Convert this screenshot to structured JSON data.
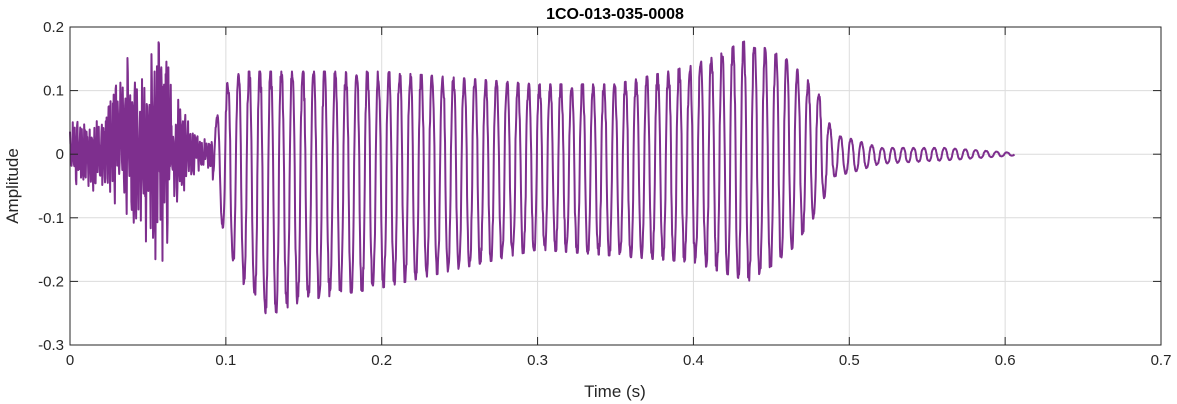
{
  "chart_data": {
    "type": "line",
    "title": "1CO-013-035-0008",
    "xlabel": "Time (s)",
    "ylabel": "Amplitude",
    "xlim": [
      0,
      0.7
    ],
    "ylim": [
      -0.3,
      0.2
    ],
    "grid": true,
    "x_ticks": [
      0,
      0.1,
      0.2,
      0.3,
      0.4,
      0.5,
      0.6,
      0.7
    ],
    "x_tick_labels": [
      "0",
      "0.1",
      "0.2",
      "0.3",
      "0.4",
      "0.5",
      "0.6",
      "0.7"
    ],
    "y_ticks": [
      0.2,
      0.1,
      0,
      -0.1,
      -0.2,
      -0.3
    ],
    "y_tick_labels": [
      "0.2",
      "0.1",
      "0",
      "-0.1",
      "-0.2",
      "-0.3"
    ],
    "series": [
      {
        "color": "#7E2F8E",
        "x_start": 0,
        "x_end": 0.606,
        "envelope": [
          {
            "x": 0.0,
            "max": 0.05,
            "min": -0.05
          },
          {
            "x": 0.02,
            "max": 0.06,
            "min": -0.06
          },
          {
            "x": 0.035,
            "max": 0.16,
            "min": -0.09
          },
          {
            "x": 0.045,
            "max": 0.12,
            "min": -0.12
          },
          {
            "x": 0.058,
            "max": 0.195,
            "min": -0.18
          },
          {
            "x": 0.07,
            "max": 0.09,
            "min": -0.07
          },
          {
            "x": 0.08,
            "max": 0.03,
            "min": -0.03
          },
          {
            "x": 0.09,
            "max": 0.02,
            "min": -0.02
          },
          {
            "x": 0.1,
            "max": 0.11,
            "min": -0.14
          },
          {
            "x": 0.11,
            "max": 0.13,
            "min": -0.2
          },
          {
            "x": 0.127,
            "max": 0.13,
            "min": -0.255
          },
          {
            "x": 0.15,
            "max": 0.13,
            "min": -0.23
          },
          {
            "x": 0.2,
            "max": 0.13,
            "min": -0.21
          },
          {
            "x": 0.25,
            "max": 0.12,
            "min": -0.18
          },
          {
            "x": 0.3,
            "max": 0.11,
            "min": -0.15
          },
          {
            "x": 0.35,
            "max": 0.11,
            "min": -0.16
          },
          {
            "x": 0.4,
            "max": 0.14,
            "min": -0.17
          },
          {
            "x": 0.435,
            "max": 0.18,
            "min": -0.2
          },
          {
            "x": 0.46,
            "max": 0.15,
            "min": -0.16
          },
          {
            "x": 0.48,
            "max": 0.1,
            "min": -0.09
          },
          {
            "x": 0.49,
            "max": 0.03,
            "min": -0.035
          },
          {
            "x": 0.5,
            "max": 0.025,
            "min": -0.03
          },
          {
            "x": 0.52,
            "max": 0.01,
            "min": -0.015
          },
          {
            "x": 0.56,
            "max": 0.01,
            "min": -0.01
          },
          {
            "x": 0.606,
            "max": 0.002,
            "min": -0.002
          }
        ]
      }
    ]
  }
}
